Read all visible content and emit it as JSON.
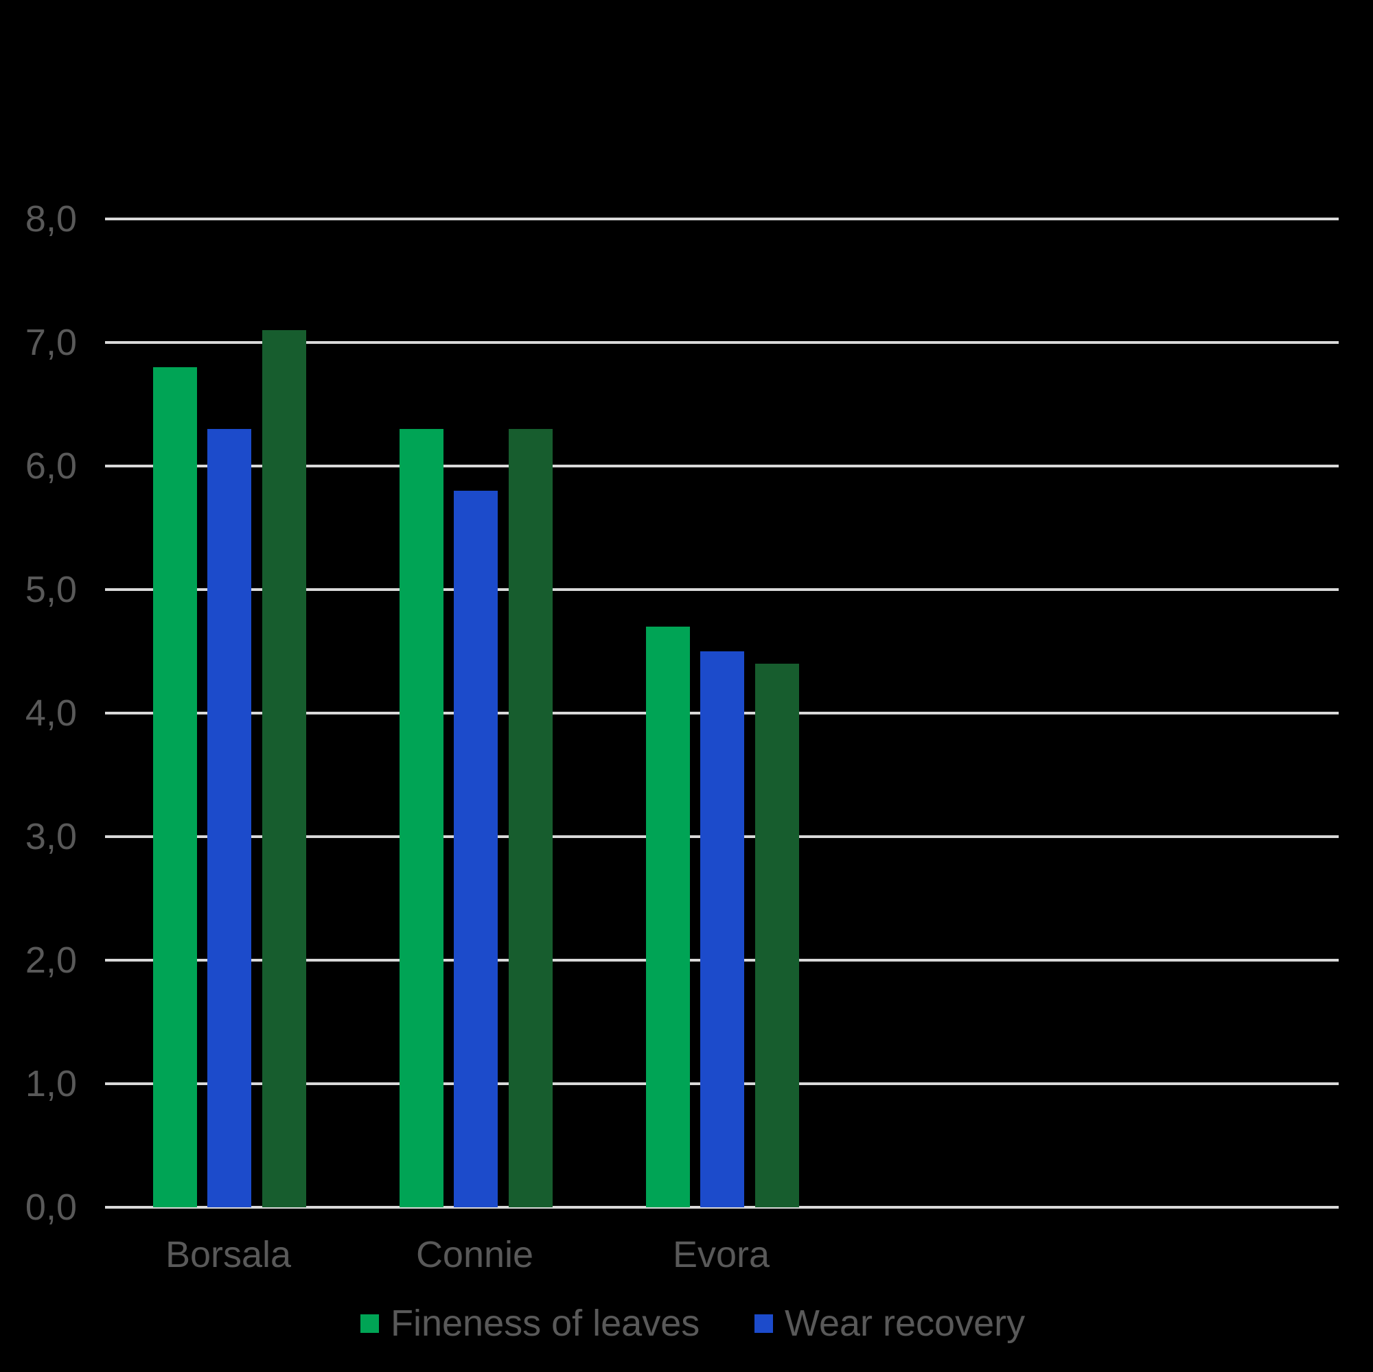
{
  "background_color": "#000000",
  "chart_data": {
    "type": "bar",
    "title": "",
    "xlabel": "",
    "ylabel": "",
    "categories": [
      "Borsala",
      "Connie",
      "Evora"
    ],
    "series": [
      {
        "name": "Fineness of leaves",
        "color": "#00A455",
        "values": [
          6.8,
          6.3,
          4.7
        ],
        "in_legend": true
      },
      {
        "name": "Wear recovery",
        "color": "#1C4BCB",
        "values": [
          6.3,
          5.8,
          4.5
        ],
        "in_legend": true
      },
      {
        "name": "",
        "color": "#175D2E",
        "values": [
          7.1,
          6.3,
          4.4
        ],
        "in_legend": false
      }
    ],
    "ylim": [
      0,
      8
    ],
    "ytick_step": 1,
    "ytick_labels": [
      "0,0",
      "1,0",
      "2,0",
      "3,0",
      "4,0",
      "5,0",
      "6,0",
      "7,0",
      "8,0"
    ],
    "grid": true,
    "gridline_color": "#D9D9D9",
    "axis_text_color": "#595959",
    "legend_position": "bottom",
    "legend_labels": [
      "Fineness of leaves",
      "Wear recovery"
    ],
    "x_slots_total": 5
  }
}
